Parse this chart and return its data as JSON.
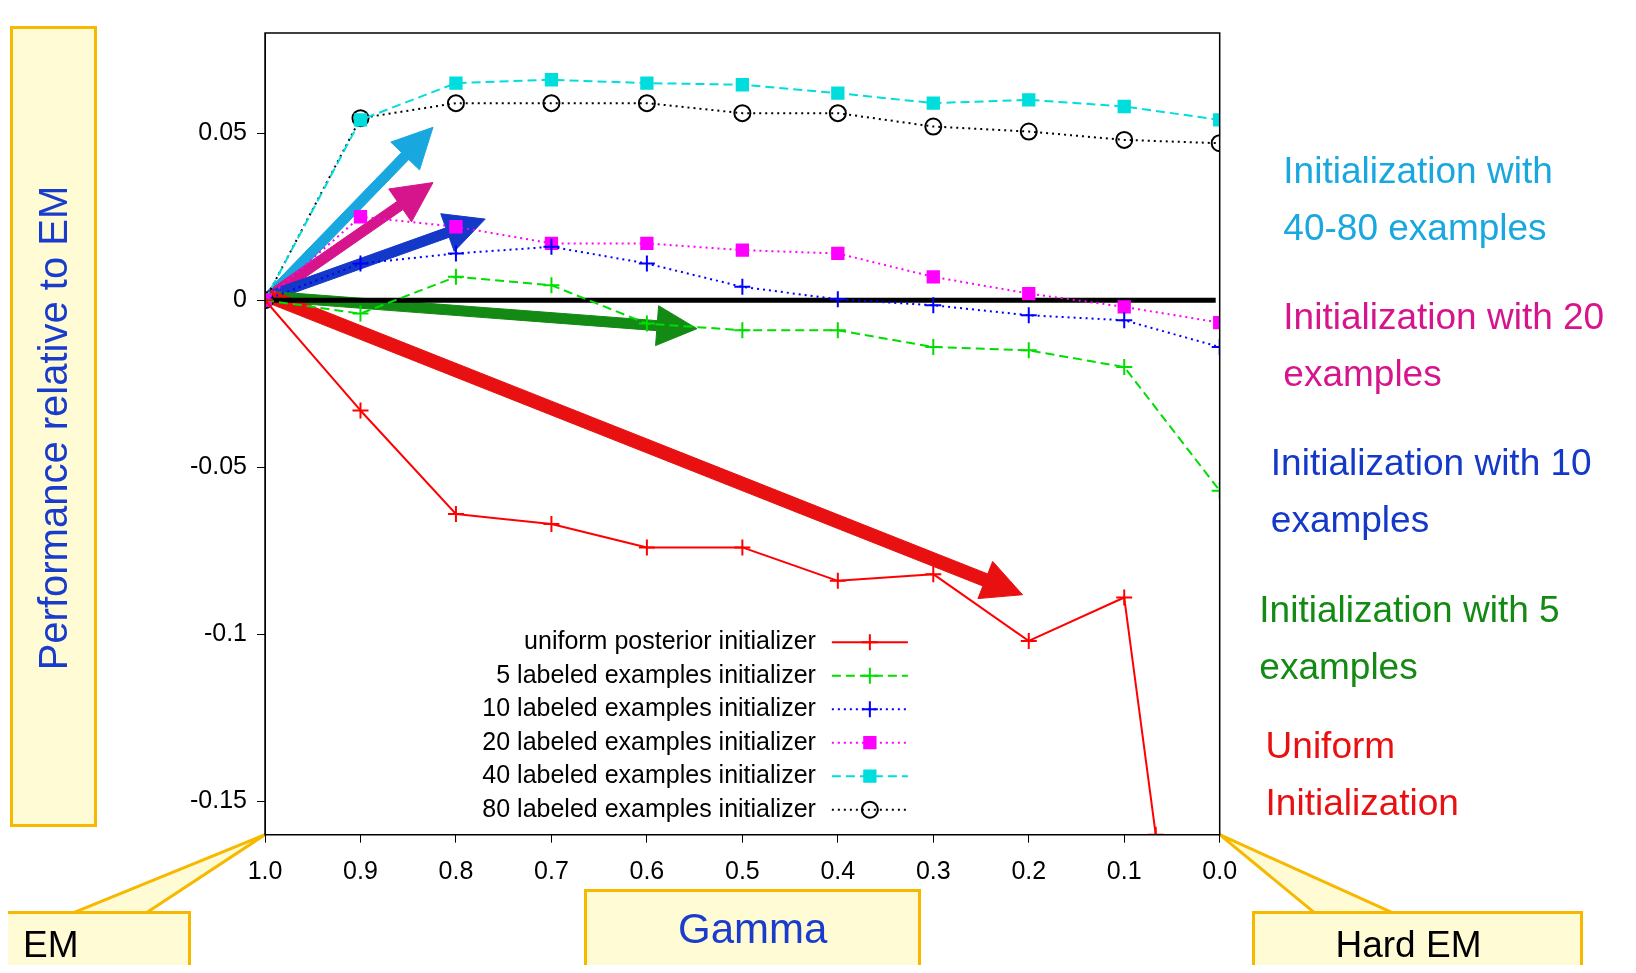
{
  "chart_data": {
    "type": "line",
    "xlabel": "Gamma",
    "ylabel": "Performance relative to EM",
    "x": [
      1.0,
      0.9,
      0.8,
      0.7,
      0.6,
      0.5,
      0.4,
      0.3,
      0.2,
      0.1,
      0.0
    ],
    "xlim": [
      1.0,
      0.0
    ],
    "xticks": [
      {
        "value": 1.0,
        "label": "1.0"
      },
      0.9,
      0.8,
      0.7,
      0.6,
      0.5,
      0.4,
      0.3,
      0.2,
      0.1,
      {
        "value": 0.0,
        "label": "0.0"
      }
    ],
    "ylim": [
      -0.16,
      0.08
    ],
    "yticks": [
      -0.15,
      -0.1,
      -0.05,
      0,
      0.05
    ],
    "grid": false,
    "legend": "bottom",
    "series": [
      {
        "name": "uniform posterior initializer",
        "color": "#ff0000",
        "marker": "cross",
        "line_style": "solid",
        "x": [
          1.0,
          0.9,
          0.8,
          0.7,
          0.6,
          0.5,
          0.4,
          0.3,
          0.2,
          0.1,
          0.067
        ],
        "values": [
          0,
          -0.033,
          -0.064,
          -0.067,
          -0.074,
          -0.074,
          -0.084,
          -0.082,
          -0.102,
          -0.089,
          -0.16
        ]
      },
      {
        "name": "5 labeled examples initializer",
        "color": "#00dd00",
        "marker": "cross",
        "line_style": "dashed",
        "values": [
          0,
          -0.004,
          0.007,
          0.0045,
          -0.007,
          -0.009,
          -0.009,
          -0.014,
          -0.015,
          -0.02,
          -0.057
        ]
      },
      {
        "name": "10 labeled examples initializer",
        "color": "#0000ff",
        "marker": "cross",
        "line_style": "dotted",
        "values": [
          0,
          0.011,
          0.014,
          0.016,
          0.011,
          0.004,
          0.0003,
          -0.0015,
          -0.0045,
          -0.006,
          -0.014
        ]
      },
      {
        "name": "20 labeled examples initializer",
        "color": "#ff00ff",
        "marker": "square",
        "line_style": "dotted",
        "values": [
          0,
          0.025,
          0.022,
          0.017,
          0.017,
          0.015,
          0.014,
          0.007,
          0.002,
          -0.002,
          -0.0067
        ]
      },
      {
        "name": "40 labeled examples initializer",
        "color": "#00dddd",
        "marker": "square",
        "line_style": "dashed",
        "values": [
          0,
          0.054,
          0.065,
          0.066,
          0.065,
          0.0645,
          0.062,
          0.059,
          0.06,
          0.058,
          0.054
        ]
      },
      {
        "name": "80 labeled examples initializer",
        "color": "#000000",
        "marker": "circle",
        "line_style": "dotted",
        "values": [
          0,
          0.0545,
          0.059,
          0.059,
          0.059,
          0.056,
          0.056,
          0.052,
          0.0505,
          0.048,
          0.047
        ]
      }
    ],
    "ref_lines": [
      {
        "axis": "y",
        "value": 0,
        "color": "#000000",
        "line_style": "solid"
      }
    ],
    "annotations": [
      "Initialization with 40-80 examples",
      "Initialization with 20 examples",
      "Initialization with 10 examples",
      "Initialization with 5 examples",
      "Uniform Initialization",
      "EM",
      "Hard EM"
    ]
  }
}
